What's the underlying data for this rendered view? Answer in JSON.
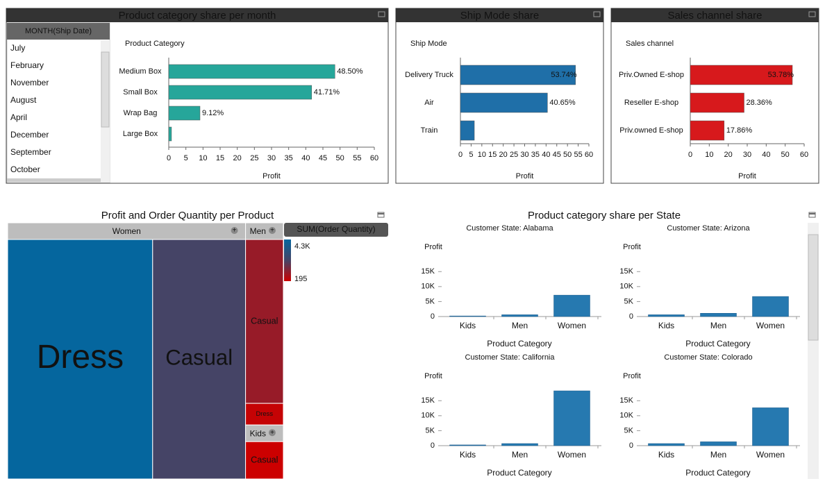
{
  "month_filter": {
    "title": "MONTH(Ship Date)",
    "items": [
      "July",
      "February",
      "November",
      "August",
      "April",
      "December",
      "September",
      "October"
    ]
  },
  "chart_data": [
    {
      "type": "hbar",
      "title": "Product category share per month",
      "category_label": "Product Category",
      "xlabel": "Profit",
      "categories": [
        "Medium Box",
        "Small Box",
        "Wrap Bag",
        "Large Box"
      ],
      "values": [
        48.5,
        41.71,
        9.12,
        0.8
      ],
      "value_labels": [
        "48.50%",
        "41.71%",
        "9.12%",
        null
      ],
      "color": "#26a69a",
      "xlim": [
        0,
        60
      ],
      "xticks": [
        0,
        5,
        10,
        15,
        20,
        25,
        30,
        35,
        40,
        45,
        50,
        55,
        60
      ]
    },
    {
      "type": "hbar",
      "title": "Ship Mode share",
      "category_label": "Ship Mode",
      "xlabel": "Profit",
      "categories": [
        "Delivery Truck",
        "Air",
        "Train"
      ],
      "values": [
        53.74,
        40.65,
        6.5
      ],
      "value_labels": [
        "53.74%",
        "40.65%",
        null
      ],
      "color": "#1f6fa8",
      "xlim": [
        0,
        60
      ],
      "xticks": [
        0,
        5,
        10,
        15,
        20,
        25,
        30,
        35,
        40,
        45,
        50,
        55,
        60
      ]
    },
    {
      "type": "hbar",
      "title": "Sales channel share",
      "category_label": "Sales channel",
      "xlabel": "Profit",
      "categories": [
        "Priv.Owned E-shop",
        "Reseller E-shop",
        "Priv.owned E-shop"
      ],
      "values": [
        53.78,
        28.36,
        17.86
      ],
      "value_labels": [
        "53.78%",
        "28.36%",
        "17.86%"
      ],
      "color": "#d7191c",
      "xlim": [
        0,
        60
      ],
      "xticks": [
        0,
        10,
        20,
        30,
        40,
        50,
        60
      ]
    },
    {
      "type": "treemap",
      "title": "Profit and Order Quantity per Product",
      "groups": [
        {
          "name": "Women",
          "items": [
            {
              "name": "Dress",
              "value": 71,
              "quantity": 4300
            },
            {
              "name": "Casual",
              "value": 45.5,
              "quantity": 2250
            }
          ]
        },
        {
          "name": "Men",
          "items": [
            {
              "name": "Casual",
              "value": 12.9,
              "quantity": 1000
            },
            {
              "name": "Dress",
              "value": 1.7,
              "quantity": 300
            }
          ]
        },
        {
          "name": "Kids",
          "items": [
            {
              "name": "Casual",
              "value": 3.9,
              "quantity": 195
            }
          ]
        }
      ],
      "color_legend": {
        "title": "SUM(Order Quantity)",
        "max": {
          "value": 4300,
          "label": "4.3K"
        },
        "min": {
          "value": 195,
          "label": "195"
        },
        "colors": [
          "#cc0000",
          "#454466",
          "#05669e"
        ]
      }
    },
    {
      "type": "facet",
      "title": "Product category share per State",
      "ylabel": "Profit",
      "xlabel": "Product Category",
      "categories": [
        "Kids",
        "Men",
        "Women"
      ],
      "color": "#2679b0",
      "ylim": [
        0,
        19000
      ],
      "yticks": [
        0,
        {
          "value": 5000,
          "label": "5K"
        },
        {
          "value": 10000,
          "label": "10K"
        },
        {
          "value": 15000,
          "label": "15K"
        }
      ],
      "facets": [
        {
          "title": "Customer State: Alabama",
          "values": [
            200,
            600,
            7150
          ]
        },
        {
          "title": "Customer State: Arizona",
          "values": [
            600,
            1100,
            6700
          ]
        },
        {
          "title": "Customer State: California",
          "values": [
            250,
            700,
            18300
          ]
        },
        {
          "title": "Customer State: Colorado",
          "values": [
            700,
            1300,
            12650
          ]
        }
      ]
    }
  ]
}
